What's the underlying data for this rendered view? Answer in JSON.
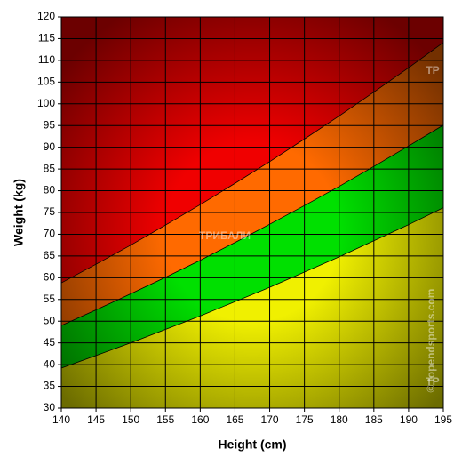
{
  "chart_data": {
    "type": "area",
    "x_label": "Height (cm)",
    "y_label": "Weight (kg)",
    "x": [
      140,
      145,
      150,
      155,
      160,
      165,
      170,
      175,
      180,
      185,
      190,
      195
    ],
    "series": [
      {
        "color": "#f0f000",
        "values": [
          39.2,
          42.1,
          45,
          48.1,
          51.2,
          54.5,
          57.8,
          61.3,
          64.8,
          68.5,
          72.2,
          76.1
        ]
      },
      {
        "color": "#00e000",
        "values": [
          49,
          52.6,
          56.3,
          60.1,
          64,
          68.1,
          72.3,
          76.6,
          81,
          85.6,
          90.3,
          95.1
        ]
      },
      {
        "color": "#ff6a00",
        "values": [
          58.8,
          63.1,
          67.5,
          72.1,
          76.8,
          81.7,
          86.7,
          91.9,
          97.2,
          102.7,
          108.3,
          114.1
        ]
      }
    ],
    "plot_background": "#f00000",
    "xlim": [
      140,
      195
    ],
    "xticks": [
      140,
      145,
      150,
      155,
      160,
      165,
      170,
      175,
      180,
      185,
      190,
      195
    ],
    "ylim": [
      30,
      120
    ],
    "yticks": [
      30,
      35,
      40,
      45,
      50,
      55,
      60,
      65,
      70,
      75,
      80,
      85,
      90,
      95,
      100,
      105,
      110,
      115,
      120
    ],
    "grid": true,
    "annotations": [
      "ТРИБАЛИ",
      "TP",
      "TP",
      "© topendsports.com"
    ]
  }
}
